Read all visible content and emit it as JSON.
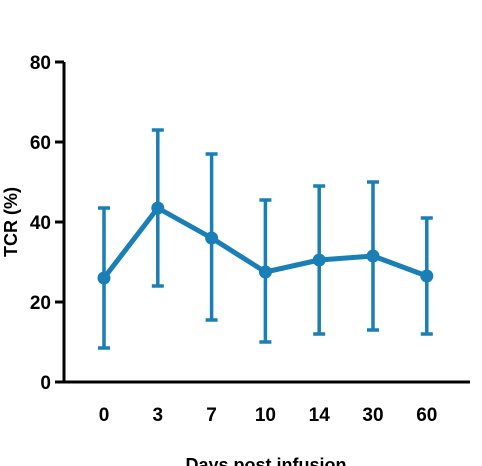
{
  "chart_data": {
    "type": "line",
    "title": "",
    "xlabel": "Days post infusion",
    "ylabel": "TCR (%)",
    "categories": [
      "0",
      "3",
      "7",
      "10",
      "14",
      "30",
      "60"
    ],
    "series": [
      {
        "values": [
          26,
          43.5,
          36,
          27.5,
          30.5,
          31.5,
          26.5
        ],
        "error_low": [
          8.5,
          24,
          15.5,
          10,
          12,
          13,
          12
        ],
        "error_high": [
          43.5,
          63,
          57,
          45.5,
          49,
          50,
          41
        ]
      }
    ],
    "ylim": [
      0,
      80
    ],
    "yticks": [
      0,
      20,
      40,
      60,
      80
    ],
    "grid": false,
    "legend": "none",
    "colors": {
      "series": "#1a7fb6",
      "axis": "#000000"
    }
  }
}
